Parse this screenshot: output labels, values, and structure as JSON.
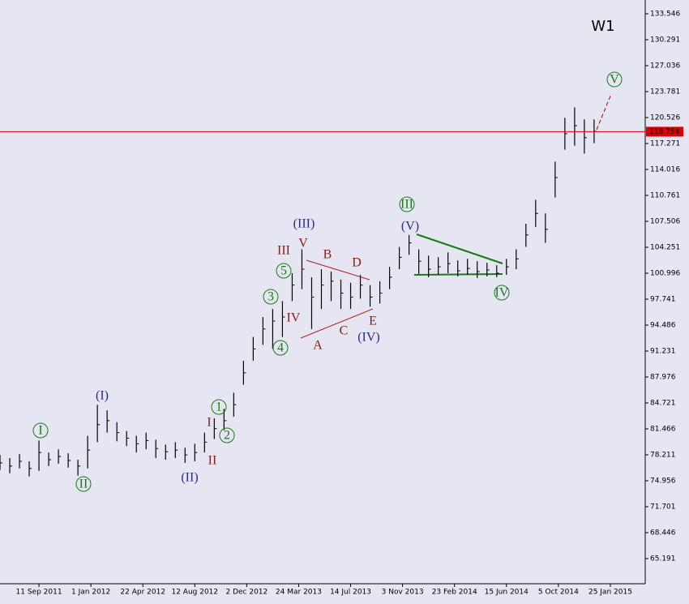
{
  "chart_data": {
    "type": "ohlc",
    "title": "W1",
    "x": [
      -12,
      -9,
      -6,
      -3,
      0,
      3,
      6,
      9,
      12,
      15,
      18,
      21,
      24,
      27,
      30,
      33,
      36,
      39,
      42,
      45,
      48,
      51,
      54,
      57,
      60,
      63,
      66,
      69,
      72,
      75,
      78,
      81,
      84,
      87,
      90,
      93,
      96,
      99,
      102,
      105,
      108,
      111,
      114,
      117,
      120,
      123,
      126,
      129,
      132,
      135,
      138,
      141,
      144,
      147,
      150,
      153,
      156,
      159,
      162,
      165,
      168,
      171
    ],
    "high": [
      78.2,
      77.8,
      78.3,
      77.4,
      80.0,
      78.5,
      78.9,
      78.4,
      77.6,
      80.6,
      84.5,
      83.8,
      82.3,
      81.2,
      80.6,
      81.0,
      80.1,
      79.5,
      79.8,
      79.1,
      79.6,
      81.0,
      82.8,
      84.0,
      86.0,
      90.0,
      93.0,
      95.5,
      96.5,
      97.5,
      101.0,
      104.0,
      100.5,
      101.5,
      101.2,
      100.2,
      99.8,
      100.8,
      99.5,
      100.0,
      101.8,
      104.3,
      105.8,
      104.0,
      103.2,
      103.0,
      103.6,
      102.6,
      102.8,
      102.5,
      102.3,
      102.0,
      102.8,
      104.0,
      107.2,
      110.2,
      108.5,
      115.0,
      120.5,
      121.8,
      120.3,
      120.3
    ],
    "low": [
      76.3,
      75.9,
      76.5,
      75.5,
      76.2,
      76.8,
      77.1,
      76.6,
      75.6,
      76.5,
      79.8,
      81.0,
      79.9,
      79.3,
      78.5,
      78.9,
      77.8,
      77.6,
      77.8,
      77.2,
      77.4,
      78.5,
      80.2,
      81.3,
      83.0,
      87.0,
      90.0,
      92.0,
      91.5,
      93.0,
      97.5,
      99.0,
      94.0,
      96.5,
      97.5,
      96.5,
      96.5,
      97.8,
      96.8,
      97.2,
      99.0,
      101.5,
      103.3,
      100.9,
      100.5,
      100.8,
      101.0,
      100.6,
      100.8,
      100.4,
      100.6,
      100.5,
      100.8,
      101.5,
      104.3,
      106.8,
      104.8,
      110.5,
      116.5,
      117.0,
      116.0,
      117.3
    ],
    "close": [
      77.2,
      76.8,
      77.4,
      76.5,
      78.5,
      77.6,
      78.0,
      77.5,
      76.8,
      78.8,
      82.0,
      82.5,
      81.0,
      80.3,
      79.6,
      80.0,
      79.0,
      78.6,
      78.8,
      78.2,
      78.5,
      79.8,
      81.5,
      82.5,
      84.5,
      88.5,
      91.5,
      94.0,
      95.0,
      95.5,
      99.5,
      101.5,
      98.0,
      99.5,
      100.0,
      98.5,
      98.0,
      99.5,
      98.0,
      98.5,
      100.5,
      103.0,
      104.8,
      102.5,
      101.5,
      101.8,
      102.2,
      101.3,
      101.6,
      101.2,
      101.4,
      101.0,
      101.8,
      102.8,
      105.8,
      108.5,
      106.5,
      113.0,
      118.5,
      119.5,
      118.0,
      118.8
    ],
    "color": "#000000",
    "last_price": 118.754,
    "last_price_color": "#e00000",
    "xlim": [
      -12,
      186.75
    ],
    "xticks": [
      {
        "value": 0,
        "label": "11 Sep 2011"
      },
      {
        "value": 16,
        "label": "1 Jan 2012"
      },
      {
        "value": 32,
        "label": "22 Apr 2012"
      },
      {
        "value": 48,
        "label": "12 Aug 2012"
      },
      {
        "value": 64,
        "label": "2 Dec 2012"
      },
      {
        "value": 80,
        "label": "24 Mar 2013"
      },
      {
        "value": 96,
        "label": "14 Jul 2013"
      },
      {
        "value": 112,
        "label": "3 Nov 2013"
      },
      {
        "value": 128,
        "label": "23 Feb 2014"
      },
      {
        "value": 144,
        "label": "15 Jun 2014"
      },
      {
        "value": 160,
        "label": "5 Oct 2014"
      },
      {
        "value": 176,
        "label": "25 Jan 2015"
      }
    ],
    "ylim": [
      62.038,
      135.275
    ],
    "yticks": [
      133.546,
      130.291,
      127.036,
      123.781,
      120.526,
      117.271,
      114.016,
      110.761,
      107.506,
      104.251,
      100.996,
      97.741,
      94.486,
      91.231,
      87.976,
      84.721,
      81.466,
      78.211,
      74.956,
      71.701,
      68.446,
      65.191
    ],
    "annotations": [
      "I",
      "II",
      "(I)",
      "(II)",
      "I",
      "II",
      "1",
      "2",
      "3",
      "4",
      "5",
      "III",
      "IV",
      "V",
      "(III)",
      "A",
      "B",
      "C",
      "D",
      "E",
      "(IV)",
      "(V)",
      "III",
      "IV",
      "V"
    ]
  }
}
